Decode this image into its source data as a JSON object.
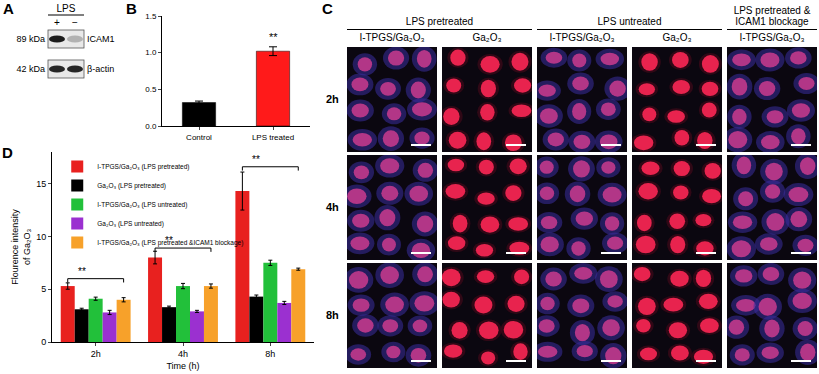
{
  "panel_labels": [
    "A",
    "B",
    "C",
    "D"
  ],
  "blot": {
    "treatment": "LPS",
    "lanes": [
      "+",
      "−"
    ],
    "bands": [
      {
        "size": "89 kDa",
        "protein": "ICAM1"
      },
      {
        "size": "42 kDa",
        "protein": "β-actin"
      }
    ]
  },
  "chart_data": [
    {
      "type": "bar",
      "categories": [
        "Control",
        "LPS treated"
      ],
      "values": [
        0.32,
        1.02
      ],
      "errors": [
        0.02,
        0.06
      ],
      "colors": [
        "#000000",
        "#ff1a1a"
      ],
      "ylim": [
        0,
        1.5
      ],
      "yticks": [
        {
          "value": 0,
          "label": "0.0"
        },
        {
          "value": 0.5,
          "label": "0.5"
        },
        {
          "value": 1,
          "label": "1.0"
        },
        {
          "value": 1.5,
          "label": "1.5"
        }
      ],
      "grid": false,
      "annotations": [
        {
          "text": "**",
          "category": "LPS treated",
          "y": 1.1
        }
      ]
    },
    {
      "type": "bar",
      "categories": [
        "2h",
        "4h",
        "8h"
      ],
      "xlabel": "Time (h)",
      "ylabel": [
        "Flourence intensity",
        "of Ga₂O₃"
      ],
      "ylim": [
        0,
        18
      ],
      "yticks": [
        0,
        5,
        10,
        15
      ],
      "grid": false,
      "legend": "top-left",
      "series": [
        {
          "name": "I-TPGS/Ga₂O₃ (LPS pretreated)",
          "color": "#e8211f",
          "values": [
            5.3,
            8.0,
            14.3
          ],
          "errors": [
            0.3,
            0.6,
            1.8
          ]
        },
        {
          "name": "Ga₂O₃ (LPS pretreated)",
          "color": "#000000",
          "values": [
            3.1,
            3.3,
            4.3
          ],
          "errors": [
            0.1,
            0.1,
            0.15
          ]
        },
        {
          "name": "I-TPGS/Ga₂O₃ (LPS untreated)",
          "color": "#22c03a",
          "values": [
            4.1,
            5.3,
            7.5
          ],
          "errors": [
            0.15,
            0.25,
            0.25
          ]
        },
        {
          "name": "Ga₂O₃ (LPS untreated)",
          "color": "#9b30d0",
          "values": [
            2.8,
            2.9,
            3.7
          ],
          "errors": [
            0.2,
            0.1,
            0.15
          ]
        },
        {
          "name": "I-TPGS/Ga₂O₃ (LPS pretreated &ICAM1 blockage)",
          "color": "#f7a12a",
          "values": [
            4.0,
            5.3,
            6.9
          ],
          "errors": [
            0.2,
            0.2,
            0.1
          ]
        }
      ],
      "annotations": [
        {
          "text": "**",
          "category": "2h",
          "y": 6.0
        },
        {
          "text": "**",
          "category": "4h",
          "y": 8.9
        },
        {
          "text": "**",
          "category": "8h",
          "y": 16.6
        }
      ]
    }
  ],
  "micrographs": {
    "groups": [
      {
        "title": "LPS pretreated",
        "columns": [
          "I-TPGS/Ga₂O₃",
          "Ga₂O₃"
        ]
      },
      {
        "title": "LPS untreated",
        "columns": [
          "I-TPGS/Ga₂O₃",
          "Ga₂O₃"
        ]
      },
      {
        "title": "LPS pretreated & ICAM1 blockage",
        "columns": [
          "I-TPGS/Ga₂O₃"
        ]
      }
    ],
    "rows": [
      "2h",
      "4h",
      "8h"
    ]
  }
}
